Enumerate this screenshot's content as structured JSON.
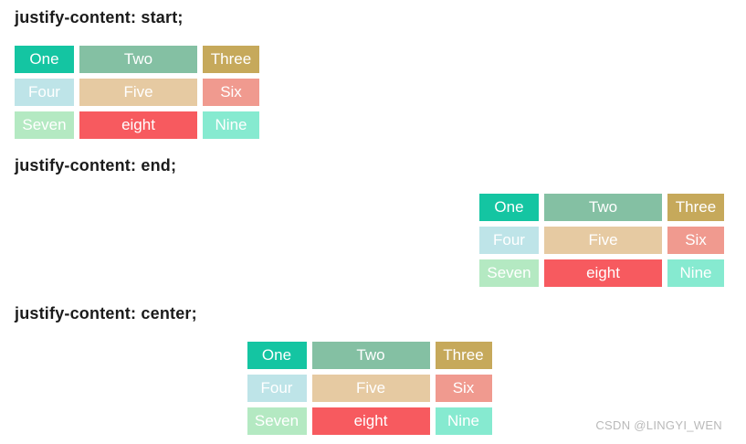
{
  "sections": [
    {
      "label": "justify-content: start;",
      "alignment": "start"
    },
    {
      "label": "justify-content: end;",
      "alignment": "end"
    },
    {
      "label": "justify-content: center;",
      "alignment": "center"
    }
  ],
  "grid": {
    "columns": 3,
    "cells": [
      {
        "label": "One",
        "color": "#14C5A2"
      },
      {
        "label": "Two",
        "color": "#84C0A3"
      },
      {
        "label": "Three",
        "color": "#C6A95B"
      },
      {
        "label": "Four",
        "color": "#BEE4E8"
      },
      {
        "label": "Five",
        "color": "#E6CAA2"
      },
      {
        "label": "Six",
        "color": "#F09A8F"
      },
      {
        "label": "Seven",
        "color": "#B4E9C2"
      },
      {
        "label": "eight",
        "color": "#F75A5F"
      },
      {
        "label": "Nine",
        "color": "#86EAD0"
      }
    ]
  },
  "watermark": {
    "text": "CSDN @LINGYI_WEN",
    "color": "#B9B9B9"
  },
  "colors": {
    "background": "#FFFFFF",
    "heading_text": "#1B1B1B",
    "cell_text": "#FFFFFF"
  }
}
